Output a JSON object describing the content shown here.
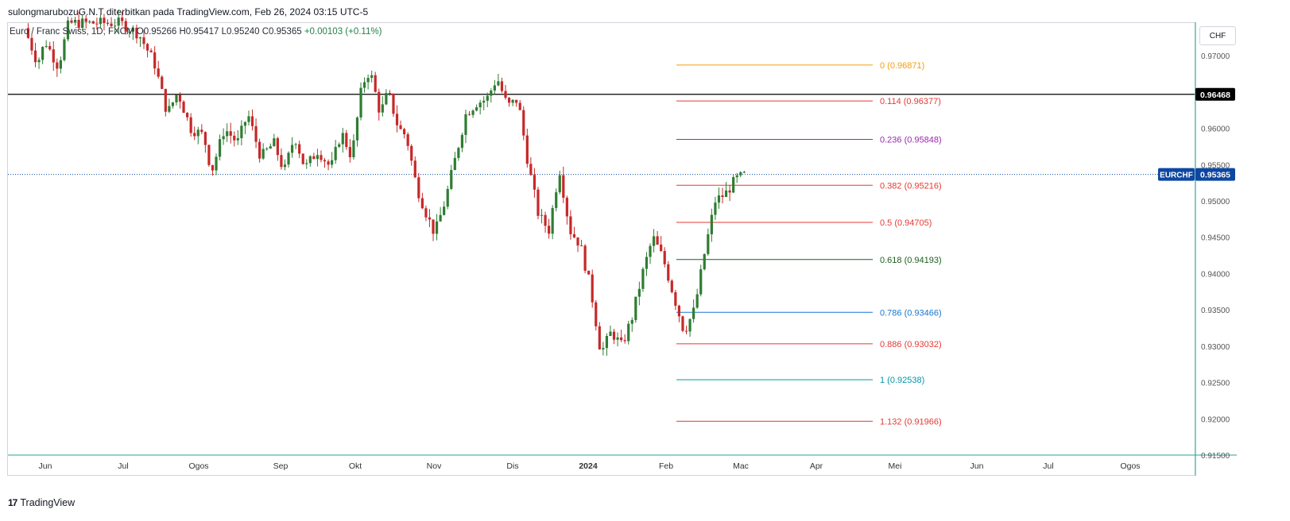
{
  "header": {
    "text": "sulongmarubozuG.N.T diterbitkan pada TradingView.com, Feb 26, 2024 03:15 UTC-5"
  },
  "legend": {
    "symbol": "Euro / Franc Swiss, 1D, FXCM",
    "open": "O0.95266",
    "high": "H0.95417",
    "low": "L0.95240",
    "close": "C0.95365",
    "change": "+0.00103 (+0.11%)"
  },
  "currency_button": "CHF",
  "footer": {
    "brand": "TradingView",
    "logo": "17"
  },
  "colors": {
    "up": "#2e7d32",
    "down": "#c62828",
    "axis": "#26a69a",
    "price_label": "#0d47a1"
  },
  "chart_data": {
    "type": "candlestick",
    "ylim": [
      0.915,
      0.9745
    ],
    "y_ticks": [
      "0.97000",
      "0.96500",
      "0.96000",
      "0.95500",
      "0.95000",
      "0.94500",
      "0.94000",
      "0.93500",
      "0.93000",
      "0.92500",
      "0.92000",
      "0.91500"
    ],
    "x_labels": [
      "Jun",
      "Jul",
      "Ogos",
      "Sep",
      "Okt",
      "Nov",
      "Dis",
      "2024",
      "Feb",
      "Mac",
      "Apr",
      "Mei",
      "Jun",
      "Jul",
      "Ogos"
    ],
    "horizontal_line": {
      "value": 0.96468,
      "label": "0.96468"
    },
    "last_price": {
      "value": 0.95365,
      "symbol": "EURCHF",
      "label": "0.95365"
    },
    "fib_levels": [
      {
        "ratio": "0",
        "value": 0.96871,
        "label": "0 (0.96871)",
        "color": "#f59e0b"
      },
      {
        "ratio": "0.114",
        "value": 0.96377,
        "label": "0.114 (0.96377)",
        "color": "#e53935"
      },
      {
        "ratio": "0.236",
        "value": 0.95848,
        "label": "0.236 (0.95848)",
        "color": "#9c27b0"
      },
      {
        "ratio": "0.382",
        "value": 0.95216,
        "label": "0.382 (0.95216)",
        "color": "#e53935"
      },
      {
        "ratio": "0.5",
        "value": 0.94705,
        "label": "0.5 (0.94705)",
        "color": "#e53935"
      },
      {
        "ratio": "0.618",
        "value": 0.94193,
        "label": "0.618 (0.94193)",
        "color": "#1b5e20"
      },
      {
        "ratio": "0.786",
        "value": 0.93466,
        "label": "0.786 (0.93466)",
        "color": "#1976d2"
      },
      {
        "ratio": "0.886",
        "value": 0.93032,
        "label": "0.886 (0.93032)",
        "color": "#e53935"
      },
      {
        "ratio": "1",
        "value": 0.92538,
        "label": "1 (0.92538)",
        "color": "#0097a7"
      },
      {
        "ratio": "1.132",
        "value": 0.91966,
        "label": "1.132 (0.91966)",
        "color": "#e53935"
      }
    ],
    "price_path": [
      [
        "2023-05-24",
        0.9738
      ],
      [
        "2023-05-29",
        0.969
      ],
      [
        "2023-06-01",
        0.972
      ],
      [
        "2023-06-06",
        0.9685
      ],
      [
        "2023-06-10",
        0.9745
      ],
      [
        "2023-06-20",
        0.9745
      ],
      [
        "2023-06-30",
        0.9745
      ],
      [
        "2023-07-07",
        0.973
      ],
      [
        "2023-07-13",
        0.969
      ],
      [
        "2023-07-18",
        0.962
      ],
      [
        "2023-07-22",
        0.965
      ],
      [
        "2023-07-27",
        0.96
      ],
      [
        "2023-08-01",
        0.959
      ],
      [
        "2023-08-04",
        0.954
      ],
      [
        "2023-08-09",
        0.96
      ],
      [
        "2023-08-14",
        0.958
      ],
      [
        "2023-08-18",
        0.962
      ],
      [
        "2023-08-23",
        0.956
      ],
      [
        "2023-08-28",
        0.958
      ],
      [
        "2023-09-01",
        0.954
      ],
      [
        "2023-09-05",
        0.959
      ],
      [
        "2023-09-09",
        0.9545
      ],
      [
        "2023-09-14",
        0.957
      ],
      [
        "2023-09-19",
        0.9545
      ],
      [
        "2023-09-23",
        0.9595
      ],
      [
        "2023-09-27",
        0.956
      ],
      [
        "2023-10-01",
        0.966
      ],
      [
        "2023-10-04",
        0.968
      ],
      [
        "2023-10-08",
        0.962
      ],
      [
        "2023-10-11",
        0.965
      ],
      [
        "2023-10-15",
        0.96
      ],
      [
        "2023-10-18",
        0.959
      ],
      [
        "2023-10-22",
        0.952
      ],
      [
        "2023-10-26",
        0.948
      ],
      [
        "2023-10-29",
        0.9455
      ],
      [
        "2023-11-02",
        0.95
      ],
      [
        "2023-11-06",
        0.956
      ],
      [
        "2023-11-10",
        0.962
      ],
      [
        "2023-11-14",
        0.9635
      ],
      [
        "2023-11-18",
        0.964
      ],
      [
        "2023-11-22",
        0.967
      ],
      [
        "2023-11-26",
        0.963
      ],
      [
        "2023-11-30",
        0.964
      ],
      [
        "2023-12-04",
        0.955
      ],
      [
        "2023-12-08",
        0.948
      ],
      [
        "2023-12-12",
        0.946
      ],
      [
        "2023-12-16",
        0.9545
      ],
      [
        "2023-12-20",
        0.946
      ],
      [
        "2023-12-24",
        0.944
      ],
      [
        "2023-12-28",
        0.938
      ],
      [
        "2024-01-01",
        0.929
      ],
      [
        "2024-01-05",
        0.932
      ],
      [
        "2024-01-09",
        0.93
      ],
      [
        "2024-01-13",
        0.934
      ],
      [
        "2024-01-17",
        0.94
      ],
      [
        "2024-01-21",
        0.945
      ],
      [
        "2024-01-25",
        0.942
      ],
      [
        "2024-01-29",
        0.937
      ],
      [
        "2024-02-02",
        0.932
      ],
      [
        "2024-02-06",
        0.935
      ],
      [
        "2024-02-10",
        0.943
      ],
      [
        "2024-02-14",
        0.95
      ],
      [
        "2024-02-18",
        0.951
      ],
      [
        "2024-02-22",
        0.953
      ],
      [
        "2024-02-26",
        0.95365
      ]
    ]
  }
}
